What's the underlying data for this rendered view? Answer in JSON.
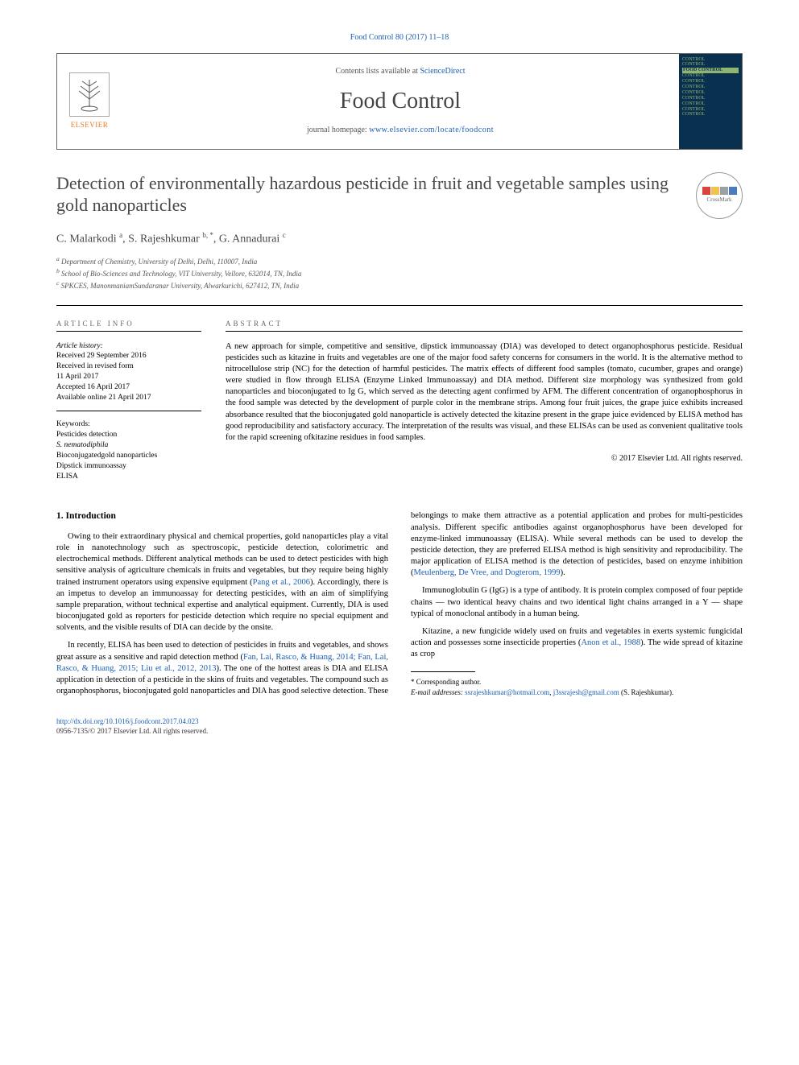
{
  "citation": "Food Control 80 (2017) 11–18",
  "header": {
    "contents_prefix": "Contents lists available at ",
    "contents_link": "ScienceDirect",
    "journal": "Food Control",
    "homepage_prefix": "journal homepage: ",
    "homepage_url": "www.elsevier.com/locate/foodcont",
    "publisher_label": "ELSEVIER",
    "cover_words": [
      "CONTROL",
      "CONTROL",
      "FOOD CONTROL",
      "CONTROL",
      "CONTROL",
      "CONTROL",
      "CONTROL",
      "CONTROL",
      "CONTROL",
      "CONTROL",
      "CONTROL"
    ]
  },
  "crossmark_label": "CrossMark",
  "title": "Detection of environmentally hazardous pesticide in fruit and vegetable samples using gold nanoparticles",
  "authors_html": "C. Malarkodi <sup>a</sup>, S. Rajeshkumar <sup>b, *</sup>, G. Annadurai <sup>c</sup>",
  "affiliations": [
    "a Department of Chemistry, University of Delhi, Delhi, 110007, India",
    "b School of Bio-Sciences and Technology, VIT University, Vellore, 632014, TN, India",
    "c SPKCES, ManonmaniamSundaranar University, Alwarkurichi, 627412, TN, India"
  ],
  "info": {
    "label": "ARTICLE INFO",
    "history_label": "Article history:",
    "history": [
      "Received 29 September 2016",
      "Received in revised form",
      "11 April 2017",
      "Accepted 16 April 2017",
      "Available online 21 April 2017"
    ],
    "keywords_label": "Keywords:",
    "keywords": [
      "Pesticides detection",
      "S. nematodiphila",
      "Bioconjugatedgold nanoparticles",
      "Dipstick immunoassay",
      "ELISA"
    ]
  },
  "abstract": {
    "label": "ABSTRACT",
    "text": "A new approach for simple, competitive and sensitive, dipstick immunoassay (DIA) was developed to detect organophosphorus pesticide. Residual pesticides such as kitazine in fruits and vegetables are one of the major food safety concerns for consumers in the world. It is the alternative method to nitrocellulose strip (NC) for the detection of harmful pesticides. The matrix effects of different food samples (tomato, cucumber, grapes and orange) were studied in flow through ELISA (Enzyme Linked Immunoassay) and DIA method. Different size morphology was synthesized from gold nanoparticles and bioconjugated to Ig G, which served as the detecting agent confirmed by AFM. The different concentration of organophosphorus in the food sample was detected by the development of purple color in the membrane strips. Among four fruit juices, the grape juice exhibits increased absorbance resulted that the bioconjugated gold nanoparticle is actively detected the kitazine present in the grape juice evidenced by ELISA method has good reproducibility and satisfactory accuracy. The interpretation of the results was visual, and these ELISAs can be used as convenient qualitative tools for the rapid screening ofkitazine residues in food samples.",
    "copyright": "© 2017 Elsevier Ltd. All rights reserved."
  },
  "intro": {
    "heading": "1. Introduction",
    "p1": "Owing to their extraordinary physical and chemical properties, gold nanoparticles play a vital role in nanotechnology such as spectroscopic, pesticide detection, colorimetric and electrochemical methods. Different analytical methods can be used to detect pesticides with high sensitive analysis of agriculture chemicals in fruits and vegetables, but they require being highly trained instrument operators using expensive equipment (",
    "p1_ref": "Pang et al., 2006",
    "p1b": "). Accordingly, there is an impetus to develop an immunoassay for detecting pesticides, with an aim of simplifying sample preparation, without technical expertise and analytical equipment. Currently, DIA is used bioconjugated gold as reporters for pesticide detection which require no special equipment and solvents, and the visible results of DIA can decide by the onsite.",
    "p2": "In recently, ELISA has been used to detection of pesticides in fruits and vegetables, and shows great assure as a sensitive and rapid detection method (",
    "p2_ref": "Fan, Lai, Rasco, & Huang, 2014; Fan, Lai, Rasco, & Huang, 2015; Liu et al., 2012, 2013",
    "p2b": "). The one of the hottest areas is DIA and ELISA application in detection of a pesticide in the skins of fruits and vegetables. The compound such as organophosphorus, bioconjugated gold nanoparticles and DIA has good selective detection. These belongings to make them attractive as a potential application and probes for multi-pesticides analysis. Different specific antibodies against organophosphorus have been developed for enzyme-linked immunoassay (ELISA). While several methods can be used to develop the pesticide detection, they are preferred ELISA method is high sensitivity and reproducibility. The major application of ELISA method is the detection of pesticides, based on enzyme inhibition (",
    "p2_ref2": "Meulenberg, De Vree, and Dogterom, 1999",
    "p2c": ").",
    "p3": "Immunoglobulin G (IgG) is a type of antibody. It is protein complex composed of four peptide chains — two identical heavy chains and two identical light chains arranged in a Y — shape typical of monoclonal antibody in a human being.",
    "p4": "Kitazine, a new fungicide widely used on fruits and vegetables in exerts systemic fungicidal action and possesses some insecticide properties (",
    "p4_ref": "Anon et al., 1988",
    "p4b": "). The wide spread of kitazine as crop"
  },
  "corr": {
    "star": "* Corresponding author.",
    "email_label": "E-mail addresses:",
    "email1": "ssrajeshkumar@hotmail.com",
    "email2": "j3ssrajesh@gmail.com",
    "name": "(S. Rajeshkumar)."
  },
  "footer": {
    "doi": "http://dx.doi.org/10.1016/j.foodcont.2017.04.023",
    "issn_line": "0956-7135/© 2017 Elsevier Ltd. All rights reserved."
  },
  "colors": {
    "link": "#1a5fb4",
    "elsevier_orange": "#e37c1f",
    "cover_bg": "#0a3050",
    "cover_fg": "#8fb570",
    "cm_red": "#d9453a",
    "cm_yellow": "#f2c34c",
    "cm_blue": "#4a7bbf",
    "cm_gray": "#9aa0a6"
  }
}
